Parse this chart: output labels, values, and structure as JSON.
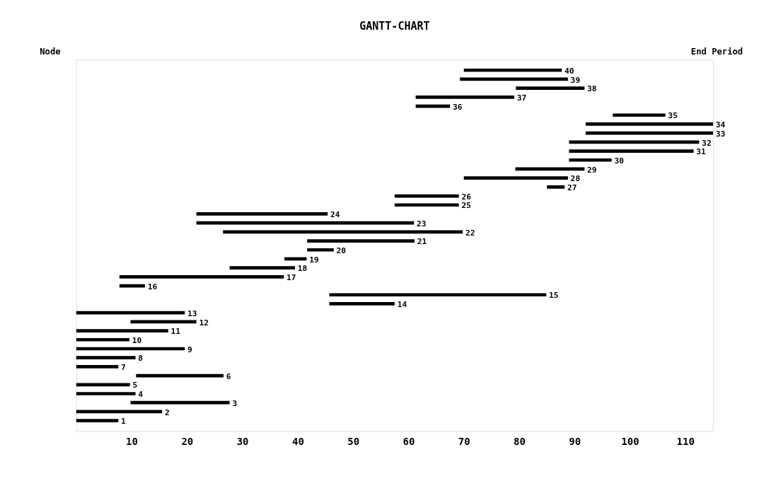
{
  "chart_data": {
    "type": "bar",
    "orientation": "horizontal",
    "title": "GANTT-CHART",
    "categories": [
      "40",
      "39",
      "38",
      "37",
      "36",
      "35",
      "34",
      "33",
      "32",
      "31",
      "30",
      "29",
      "28",
      "27",
      "26",
      "25",
      "24",
      "23",
      "22",
      "21",
      "20",
      "19",
      "18",
      "17",
      "16",
      "15",
      "14",
      "13",
      "12",
      "11",
      "10",
      "9",
      "8",
      "7",
      "6",
      "5",
      "4",
      "3",
      "2",
      "1"
    ],
    "base": [
      70,
      69.3,
      79.4,
      61.3,
      61.3,
      96.9,
      92,
      92,
      89,
      89,
      89,
      79.3,
      70,
      85,
      57.5,
      57.5,
      21.7,
      21.7,
      26.5,
      41.7,
      41.7,
      37.6,
      27.7,
      7.8,
      7.8,
      45.7,
      45.7,
      0,
      9.8,
      0,
      0,
      0,
      0,
      0,
      10.8,
      0,
      0,
      9.8,
      0,
      0
    ],
    "values": [
      17.7,
      19.5,
      12.4,
      17.8,
      6.2,
      9.5,
      23,
      23,
      23.5,
      22.5,
      7.7,
      12.5,
      18.8,
      3.2,
      11.6,
      11.6,
      23.7,
      39.3,
      43.3,
      19.4,
      4.8,
      4,
      11.8,
      29.7,
      4.6,
      39.2,
      11.8,
      19.6,
      11.9,
      16.6,
      9.6,
      19.6,
      10.7,
      7.6,
      15.8,
      9.7,
      10.7,
      17.9,
      15.5,
      7.6
    ],
    "color": "#000000",
    "xlim": [
      0,
      115
    ],
    "xticks": [
      10,
      20,
      30,
      40,
      50,
      60,
      70,
      80,
      90,
      100,
      110
    ],
    "tick_labels": "x",
    "grid": false,
    "annotations": [
      "Node",
      "End Period"
    ]
  }
}
